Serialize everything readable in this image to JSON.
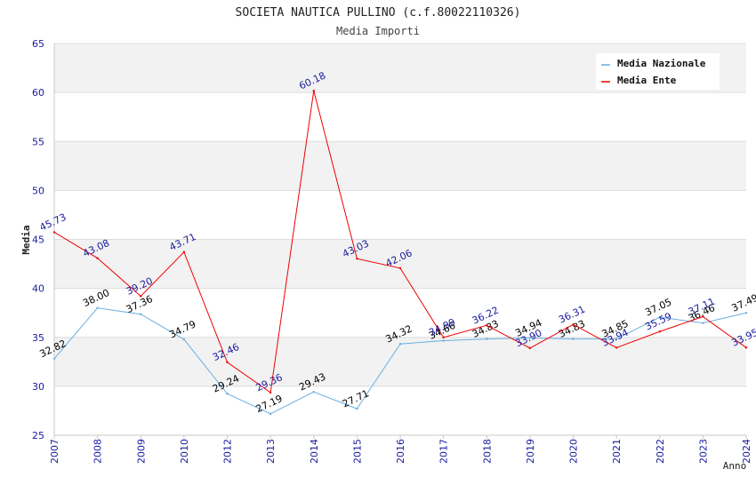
{
  "chart_data": {
    "type": "line",
    "title": "SOCIETA NAUTICA PULLINO (c.f.80022110326)",
    "subtitle": "Media Importi",
    "xlabel": "Anno",
    "ylabel": "Media",
    "ylim": [
      25,
      65
    ],
    "yticks": [
      25,
      30,
      35,
      40,
      45,
      50,
      55,
      60,
      65
    ],
    "categories": [
      "2007",
      "2008",
      "2009",
      "2010",
      "2012",
      "2013",
      "2014",
      "2015",
      "2016",
      "2017",
      "2018",
      "2019",
      "2020",
      "2021",
      "2022",
      "2023",
      "2024"
    ],
    "legend_position": "top-right",
    "series": [
      {
        "name": "Media Nazionale",
        "color": "#6aaee0",
        "label_color": "#000000",
        "values": [
          32.82,
          38.0,
          37.36,
          34.79,
          29.24,
          27.19,
          29.43,
          27.71,
          34.32,
          34.66,
          34.83,
          34.94,
          34.83,
          34.85,
          37.05,
          36.46,
          37.49
        ],
        "labels": [
          "32.82",
          "38.00",
          "37.36",
          "34.79",
          "29.24",
          "27.19",
          "29.43",
          "27.71",
          "34.32",
          "34.66",
          "34.83",
          "34.94",
          "34.83",
          "34.85",
          "37.05",
          "36.46",
          "37.49"
        ]
      },
      {
        "name": "Media Ente",
        "color": "#ee0000",
        "label_color": "#1a1a9e",
        "values": [
          45.73,
          43.08,
          39.2,
          43.71,
          32.46,
          29.36,
          60.18,
          43.03,
          42.06,
          34.99,
          36.22,
          33.9,
          36.31,
          33.94,
          35.59,
          37.11,
          33.95
        ],
        "labels": [
          "45.73",
          "43.08",
          "39.20",
          "43.71",
          "32.46",
          "29.36",
          "60.18",
          "43.03",
          "42.06",
          "34.99",
          "36.22",
          "33.90",
          "36.31",
          "33.94",
          "35.59",
          "37.11",
          "33.95"
        ]
      }
    ]
  }
}
